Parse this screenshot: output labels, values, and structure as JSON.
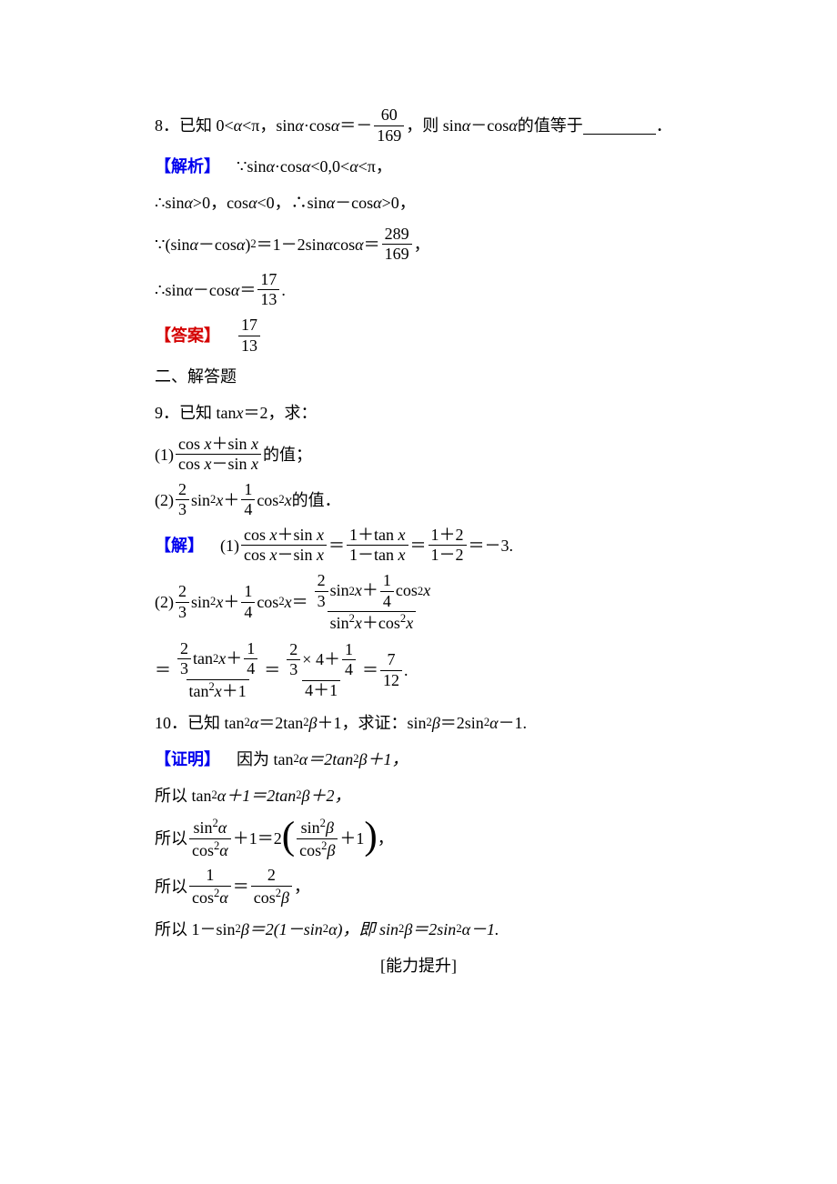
{
  "colors": {
    "text": "#000000",
    "blue": "#0000ee",
    "red": "#d40000",
    "bg": "#ffffff",
    "rule": "#000000"
  },
  "typography": {
    "body_fontsize_pt": 14,
    "line_height": 1.9,
    "font_family": "SimSun / Times New Roman"
  },
  "q8": {
    "prompt_prefix": "8．已知 0<",
    "alpha": "α",
    "lt_pi": "<π，",
    "sin_a": "sin ",
    "cos_a": "·cos ",
    "eq_neg": "＝－",
    "frac1_num": "60",
    "frac1_den": "169",
    "then": "，则 sin ",
    "minus": "－cos ",
    "tail": " 的值等于",
    "period": "．",
    "label_analysis": "【解析】",
    "s1_a": "∵sin ",
    "s1_b": "·cos ",
    "s1_c": "<0,0<",
    "s1_d": "<π，",
    "s2_a": "∴sin ",
    "s2_b": ">0，cos ",
    "s2_c": "<0，∴sin ",
    "s2_d": "－cos ",
    "s2_e": ">0，",
    "s3_a": "∵(sin ",
    "s3_b": "－cos ",
    "s3_c": ")",
    "s3_sq": "2",
    "s3_d": "＝1－2sin ",
    "s3_e": "cos ",
    "s3_f": "＝",
    "frac2_num": "289",
    "frac2_den": "169",
    "comma": "，",
    "s4_a": "∴sin ",
    "s4_b": "－cos ",
    "s4_c": "＝",
    "frac3_num": "17",
    "frac3_den": "13",
    "label_answer": "【答案】",
    "ans_num": "17",
    "ans_den": "13"
  },
  "sec2": "二、解答题",
  "q9": {
    "prompt": "9．已知 tan ",
    "x": "x",
    "eq2": "＝2，求：",
    "p1_pre": "(1)",
    "p1_num": "cos x＋sin x",
    "p1_den": "cos x－sin x",
    "p1_tail": "的值；",
    "p2_pre": "(2)",
    "f23_num": "2",
    "f23_den": "3",
    "sin2x": "sin",
    "sq": "2",
    "xx": "x",
    "plus": "＋",
    "f14_num": "1",
    "f14_den": "4",
    "cos2x": "cos",
    "p2_tail": " 的值．",
    "label_sol": "【解】",
    "sol1_pre": "(1)",
    "sol1_f1_num": "cos x＋sin x",
    "sol1_f1_den": "cos x－sin x",
    "eq": "＝",
    "sol1_f2_num": "1＋tan x",
    "sol1_f2_den": "1－tan x",
    "sol1_f3_num": "1＋2",
    "sol1_f3_den": "1－2",
    "sol1_tail": "＝－3.",
    "sol2_pre": "(2)",
    "sol2_rhs1_num_a": "2",
    "sol2_rhs1_num_b": "3",
    "sol2_rhs1_num_c": "1",
    "sol2_rhs1_num_d": "4",
    "sol2_rhs1_den": "sin",
    "sol2_rhs1_den2": "x＋cos",
    "sol2_rhs1_den3": "x",
    "line4_f1_num_a": "2",
    "line4_f1_num_b": "3",
    "line4_f1_num_c": "1",
    "line4_f1_num_d": "4",
    "tan2x": "tan",
    "xp1": "x＋1",
    "times4": " × 4＋",
    "four_plus_one": "4＋1",
    "ans_num": "7",
    "ans_den": "12",
    "dot": "."
  },
  "q10": {
    "prompt_a": "10．已知 tan",
    "sq": "2",
    "a": " α",
    "eq": "＝2tan",
    "b": "β",
    "plus1": "＋1，求证：sin",
    "beta": "β",
    "eq2": "＝2sin",
    "alpha": "α",
    "minus1": "－1.",
    "label_proof": "【证明】",
    "p1": "因为 tan",
    "p1b": "α＝2tan",
    "p1c": "β＋1，",
    "p2": "所以 tan",
    "p2b": "α＋1＝2tan",
    "p2c": "β＋2，",
    "p3_pre": "所以",
    "p3_f1_num": "sin",
    "p3_f1_num2": "α",
    "p3_f1_den": "cos",
    "p3_f1_den2": "α",
    "p3_mid": "＋1＝2",
    "p3_f2_num": "sin",
    "p3_f2_num2": "β",
    "p3_f2_den": "cos",
    "p3_f2_den2": "β",
    "p3_tail": "＋1",
    "p3_comma": "，",
    "p4_pre": "所以",
    "p4_f1_num": "1",
    "p4_f1_den": "cos",
    "p4_f1_den2": "α",
    "p4_eq": "＝",
    "p4_f2_num": "2",
    "p4_f2_den": "cos",
    "p4_f2_den2": "β",
    "p4_comma": "，",
    "p5": "所以 1－sin",
    "p5b": "β＝2(1－sin",
    "p5c": "α)，即 sin",
    "p5d": "β＝2sin",
    "p5e": "α－1."
  },
  "footer": "[能力提升]"
}
